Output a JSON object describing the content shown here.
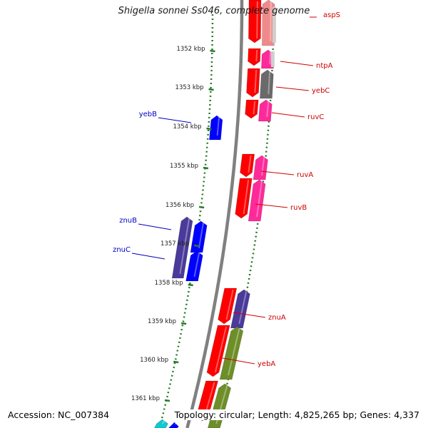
{
  "title": "Shigella sonnei Ss046, complete genome",
  "footer": {
    "accession": "Accession: NC_007384",
    "summary": "Topology: circular; Length: 4,825,265 bp; Genes: 4,337"
  },
  "colors": {
    "backbone": "#808080",
    "tick": "#2a7a2a",
    "forward_label": "#d00000",
    "reverse_label": "#0000c0",
    "red": "#ff0000",
    "pink": "#ff2a9a",
    "light_pink": "#f08a8a",
    "gray": "#6a6a6a",
    "silver": "#cfcfcf",
    "blue": "#0000ff",
    "indigo": "#4a3a9a",
    "olive": "#6e8e28",
    "cyan": "#10c8d0"
  },
  "scale_labels": [
    "1352 kbp",
    "1353 kbp",
    "1354 kbp",
    "1355 kbp",
    "1356 kbp",
    "1357 kbp",
    "1358 kbp",
    "1359 kbp",
    "1360 kbp",
    "1361 kbp"
  ],
  "gene_labels": [
    {
      "name": "aspS",
      "strand": "forward"
    },
    {
      "name": "ntpA",
      "strand": "forward"
    },
    {
      "name": "yebC",
      "strand": "forward"
    },
    {
      "name": "ruvC",
      "strand": "forward"
    },
    {
      "name": "ruvA",
      "strand": "forward"
    },
    {
      "name": "ruvB",
      "strand": "forward"
    },
    {
      "name": "znuA",
      "strand": "forward"
    },
    {
      "name": "yebA",
      "strand": "forward"
    },
    {
      "name": "yebB",
      "strand": "reverse"
    },
    {
      "name": "znuB",
      "strand": "reverse"
    },
    {
      "name": "znuC",
      "strand": "reverse"
    }
  ]
}
